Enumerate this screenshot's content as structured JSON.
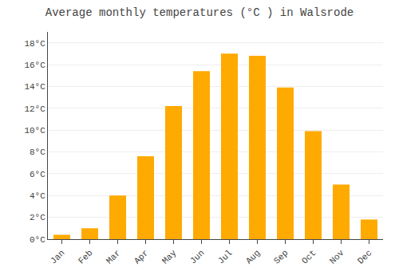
{
  "chart_data": {
    "type": "bar",
    "title": "Average monthly temperatures (°C ) in Walsrode",
    "categories": [
      "Jan",
      "Feb",
      "Mar",
      "Apr",
      "May",
      "Jun",
      "Jul",
      "Aug",
      "Sep",
      "Oct",
      "Nov",
      "Dec"
    ],
    "values": [
      0.4,
      1.0,
      4.0,
      7.6,
      12.2,
      15.4,
      17.0,
      16.8,
      13.9,
      9.9,
      5.0,
      1.8
    ],
    "color": "#FFAA00",
    "ylim": [
      0,
      19
    ],
    "yticks": [
      {
        "value": 0,
        "label": "0°C"
      },
      {
        "value": 2,
        "label": "2°C"
      },
      {
        "value": 4,
        "label": "4°C"
      },
      {
        "value": 6,
        "label": "6°C"
      },
      {
        "value": 8,
        "label": "8°C"
      },
      {
        "value": 10,
        "label": "10°C"
      },
      {
        "value": 12,
        "label": "12°C"
      },
      {
        "value": 14,
        "label": "14°C"
      },
      {
        "value": 16,
        "label": "16°C"
      },
      {
        "value": 18,
        "label": "18°C"
      }
    ],
    "grid": true
  }
}
